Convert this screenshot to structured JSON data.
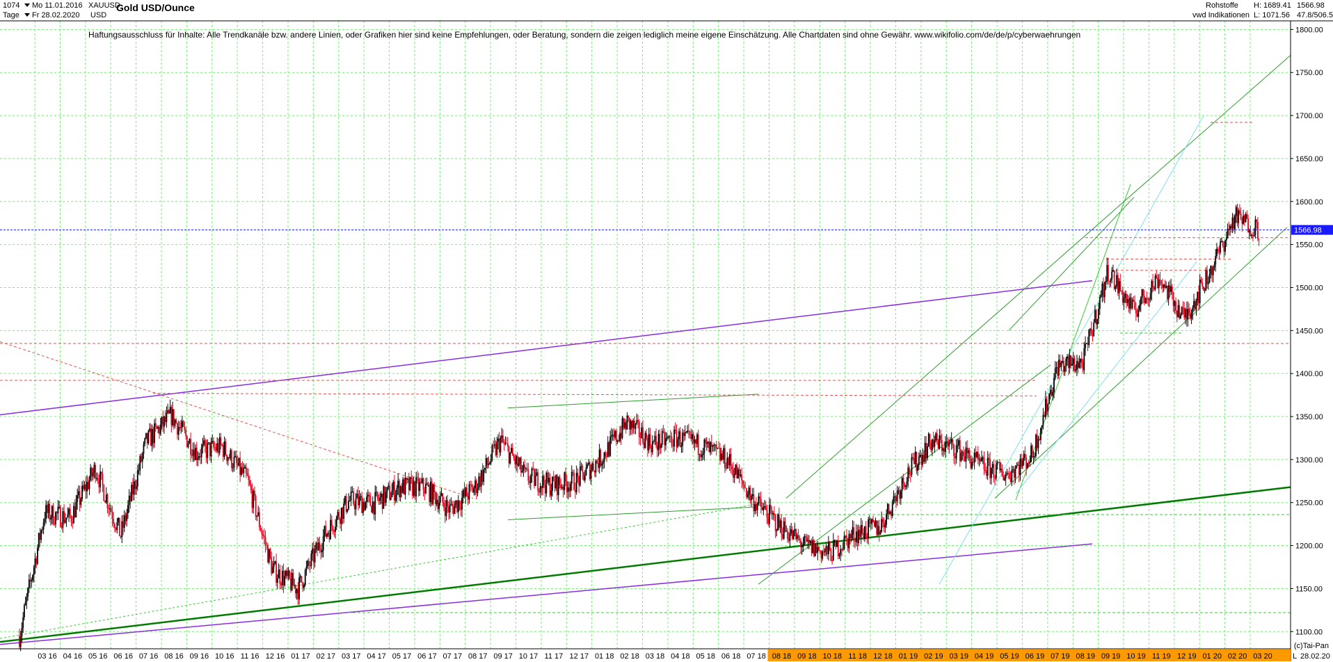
{
  "header": {
    "left_value": "1074",
    "period_label": "Tage",
    "date_from": "Mo 11.01.2016",
    "date_to": "Fr 28.02.2020",
    "symbol": "XAUUSD",
    "currency": "USD",
    "title": "Gold USD/Ounce",
    "category": "Rohstoffe",
    "source": "vwd Indikationen",
    "high": "H: 1689.41",
    "low": "L: 1071.56",
    "last": "1566.98",
    "ratio": "47.8/506.5"
  },
  "disclaimer": "Haftungsausschluss für Inhalte: Alle Trendkanäle bzw. andere Linien, oder Grafiken hier sind keine Empfehlungen, oder Beratung, sondern die zeigen lediglich meine eigene Einschätzung. Alle Chartdaten sind ohne Gewähr.  www.wikifolio.com/de/de/p/cyberwaehrungen",
  "footer": {
    "copyright": "(c)Tai-Pan",
    "end_date": "28.02.20",
    "scale_marker": "L"
  },
  "colors": {
    "candle_up": "#000000",
    "candle_down": "#e8001c",
    "price_line": "#1a1aff",
    "purple": "#8a2be2",
    "green": "#2e9b2e",
    "bright_green": "#33cc33",
    "dark_green": "#007a00",
    "cyan": "#7fe0f0",
    "red_dash": "#e65050",
    "highlight": "#ff9900"
  },
  "chart_data": {
    "type": "candlestick",
    "title": "Gold USD/Ounce",
    "ylim": [
      1080,
      1810
    ],
    "yticks": [
      1100,
      1150,
      1200,
      1250,
      1300,
      1350,
      1400,
      1450,
      1500,
      1550,
      1600,
      1650,
      1700,
      1750,
      1800
    ],
    "ytick_labels": [
      "1100.00",
      "1150.00",
      "1200.00",
      "1250.00",
      "1300.00",
      "1350.00",
      "1400.00",
      "1450.00",
      "1500.00",
      "1550.00",
      "1600.00",
      "1650.00",
      "1700.00",
      "1750.00",
      "1800.00"
    ],
    "x_labels": [
      "03 16",
      "04 16",
      "05 16",
      "06 16",
      "07 16",
      "08 16",
      "09 16",
      "10 16",
      "11 16",
      "12 16",
      "01 17",
      "02 17",
      "03 17",
      "04 17",
      "05 17",
      "06 17",
      "07 17",
      "08 17",
      "09 17",
      "10 17",
      "11 17",
      "12 17",
      "01 18",
      "02 18",
      "03 18",
      "04 18",
      "05 18",
      "06 18",
      "07 18",
      "08 18",
      "09 18",
      "10 18",
      "11 18",
      "12 18",
      "01 19",
      "02 19",
      "03 19",
      "04 19",
      "05 19",
      "06 19",
      "07 19",
      "08 19",
      "09 19",
      "10 19",
      "11 19",
      "12 19",
      "01 20",
      "02 20",
      "03 20"
    ],
    "highlight_from_label": "08 18",
    "last_price": 1566.98,
    "high": 1689.41,
    "low": 1071.56,
    "close_series_monthly": [
      {
        "x": "2016-01",
        "close": 1095
      },
      {
        "x": "2016-02",
        "close": 1238
      },
      {
        "x": "2016-03",
        "close": 1232
      },
      {
        "x": "2016-04",
        "close": 1290
      },
      {
        "x": "2016-05",
        "close": 1212
      },
      {
        "x": "2016-06",
        "close": 1320
      },
      {
        "x": "2016-07",
        "close": 1351
      },
      {
        "x": "2016-08",
        "close": 1308
      },
      {
        "x": "2016-09",
        "close": 1315
      },
      {
        "x": "2016-10",
        "close": 1276
      },
      {
        "x": "2016-11",
        "close": 1172
      },
      {
        "x": "2016-12",
        "close": 1150
      },
      {
        "x": "2017-01",
        "close": 1210
      },
      {
        "x": "2017-02",
        "close": 1252
      },
      {
        "x": "2017-03",
        "close": 1249
      },
      {
        "x": "2017-04",
        "close": 1268
      },
      {
        "x": "2017-05",
        "close": 1268
      },
      {
        "x": "2017-06",
        "close": 1242
      },
      {
        "x": "2017-07",
        "close": 1268
      },
      {
        "x": "2017-08",
        "close": 1322
      },
      {
        "x": "2017-09",
        "close": 1280
      },
      {
        "x": "2017-10",
        "close": 1270
      },
      {
        "x": "2017-11",
        "close": 1275
      },
      {
        "x": "2017-12",
        "close": 1303
      },
      {
        "x": "2018-01",
        "close": 1343
      },
      {
        "x": "2018-02",
        "close": 1318
      },
      {
        "x": "2018-03",
        "close": 1325
      },
      {
        "x": "2018-04",
        "close": 1315
      },
      {
        "x": "2018-05",
        "close": 1298
      },
      {
        "x": "2018-06",
        "close": 1252
      },
      {
        "x": "2018-07",
        "close": 1224
      },
      {
        "x": "2018-08",
        "close": 1200
      },
      {
        "x": "2018-09",
        "close": 1191
      },
      {
        "x": "2018-10",
        "close": 1214
      },
      {
        "x": "2018-11",
        "close": 1222
      },
      {
        "x": "2018-12",
        "close": 1281
      },
      {
        "x": "2019-01",
        "close": 1321
      },
      {
        "x": "2019-02",
        "close": 1313
      },
      {
        "x": "2019-03",
        "close": 1292
      },
      {
        "x": "2019-04",
        "close": 1283
      },
      {
        "x": "2019-05",
        "close": 1305
      },
      {
        "x": "2019-06",
        "close": 1409
      },
      {
        "x": "2019-07",
        "close": 1413
      },
      {
        "x": "2019-08",
        "close": 1520
      },
      {
        "x": "2019-09",
        "close": 1472
      },
      {
        "x": "2019-10",
        "close": 1512
      },
      {
        "x": "2019-11",
        "close": 1464
      },
      {
        "x": "2019-12",
        "close": 1517
      },
      {
        "x": "2020-01",
        "close": 1582
      },
      {
        "x": "2020-02",
        "close": 1567
      }
    ]
  }
}
